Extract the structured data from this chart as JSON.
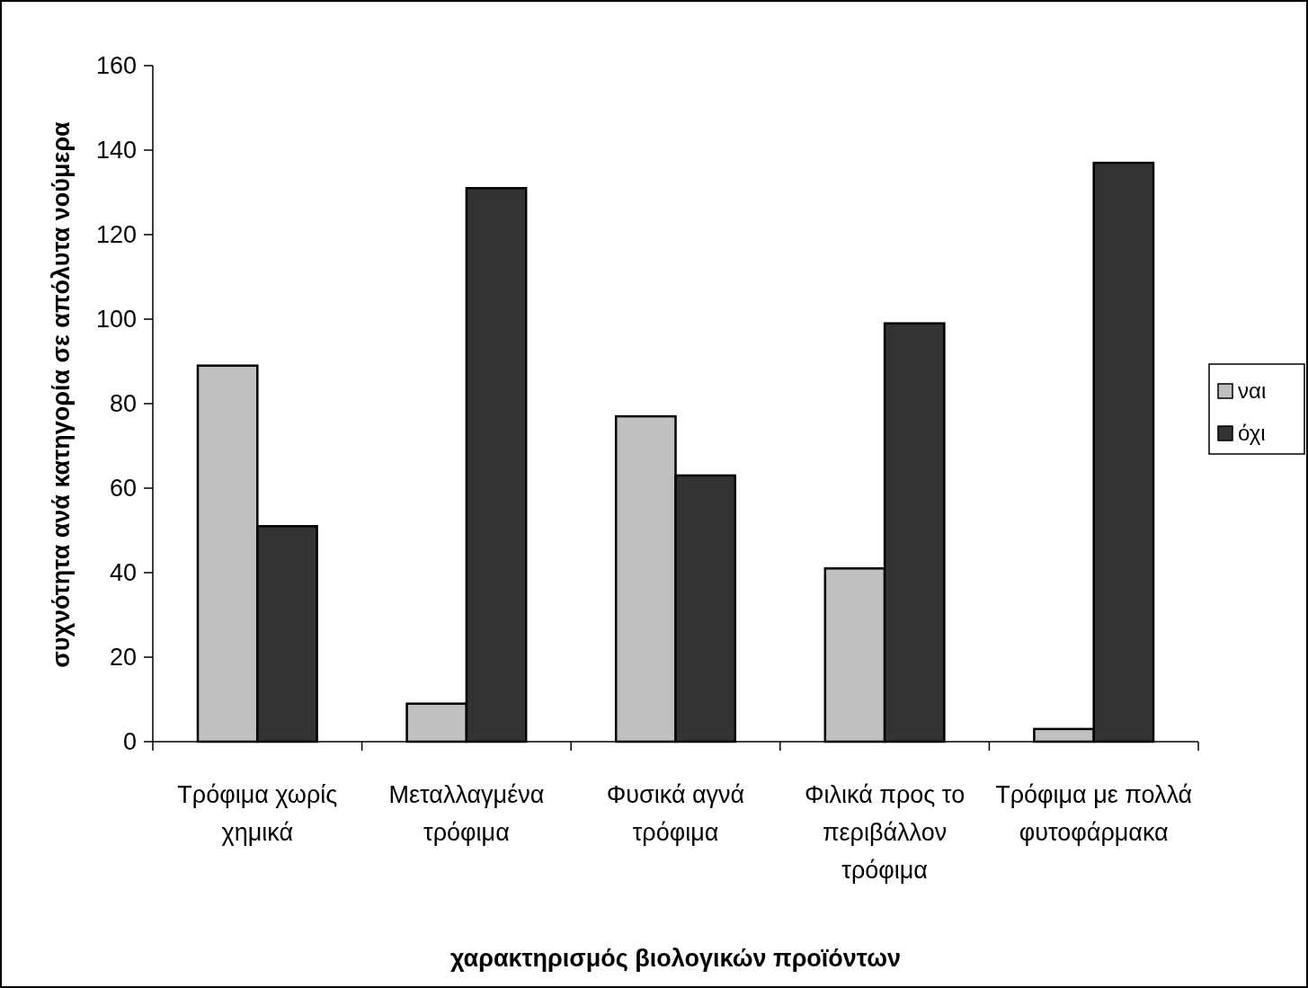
{
  "chart_data": {
    "type": "bar",
    "categories": [
      "Τρόφιμα χωρίς χημικά",
      "Μεταλλαγμένα τρόφιμα",
      "Φυσικά αγνά τρόφιμα",
      "Φιλικά προς το περιβάλλον τρόφιμα",
      "Τρόφιμα με πολλά φυτοφάρμακα"
    ],
    "series": [
      {
        "name": "ναι",
        "color": "#c0c0c0",
        "values": [
          89,
          9,
          77,
          41,
          3
        ]
      },
      {
        "name": "όχι",
        "color": "#333333",
        "values": [
          51,
          131,
          63,
          99,
          137
        ]
      }
    ],
    "xlabel": "χαρακτηρισμός βιολογικών προϊόντων",
    "ylabel": "συχνότητα ανά κατηγορία σε απόλυτα νούμερα",
    "ylim": [
      0,
      160
    ],
    "yticks": [
      0,
      20,
      40,
      60,
      80,
      100,
      120,
      140,
      160
    ],
    "legend": "right"
  }
}
